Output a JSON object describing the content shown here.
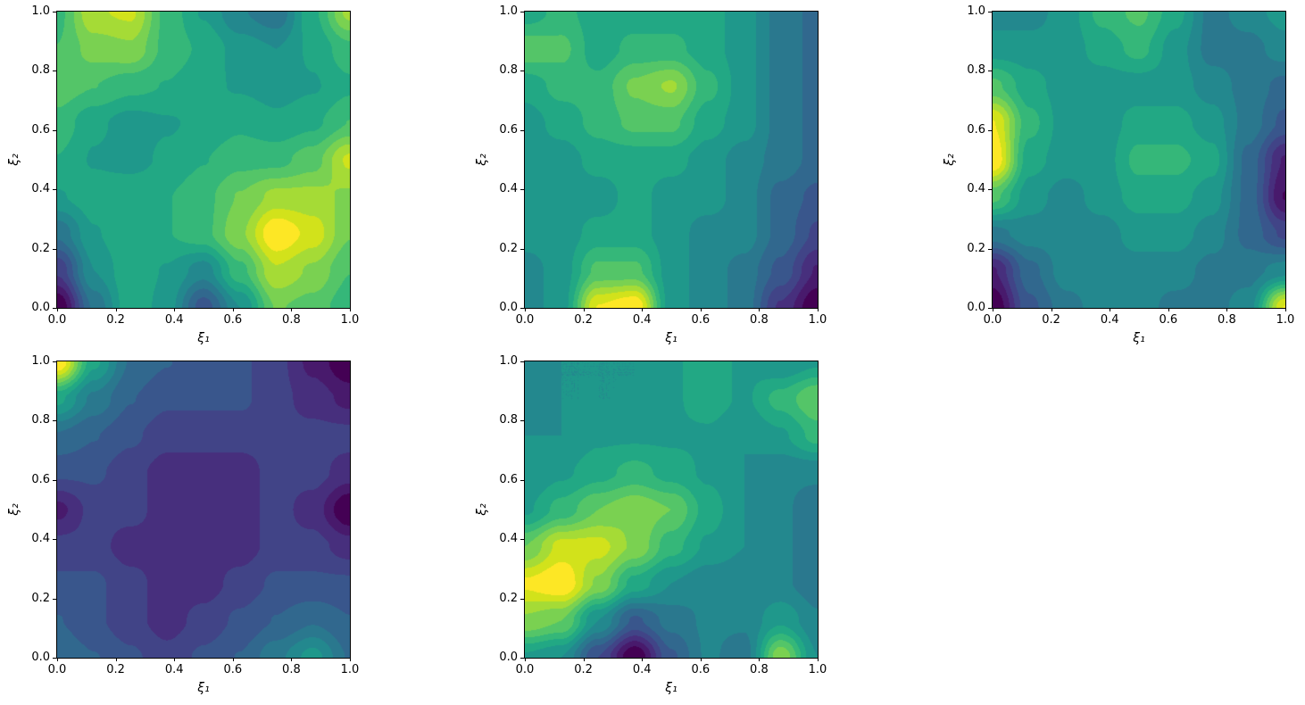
{
  "figure": {
    "background": "#ffffff",
    "layout": "2 rows x 3 columns, bottom-right cell empty",
    "num_subplots": 5
  },
  "chart_data": [
    {
      "type": "heatmap",
      "subtype": "filled-contour",
      "title": "",
      "xlabel": "ξ₁",
      "ylabel": "ξ₂",
      "xlim": [
        0.0,
        1.0
      ],
      "ylim": [
        0.0,
        1.0
      ],
      "xticks": [
        "0.0",
        "0.2",
        "0.4",
        "0.6",
        "0.8",
        "1.0"
      ],
      "yticks": [
        "0.0",
        "0.2",
        "0.4",
        "0.6",
        "0.8",
        "1.0"
      ],
      "colormap": "viridis",
      "levels": 16,
      "grid_x": [
        0,
        0.125,
        0.25,
        0.375,
        0.5,
        0.625,
        0.75,
        0.875,
        1.0
      ],
      "grid_y_top_to_bottom": [
        1.0,
        0.875,
        0.75,
        0.625,
        0.5,
        0.375,
        0.25,
        0.125,
        0.0
      ],
      "values": [
        [
          0.7,
          0.88,
          0.9,
          0.7,
          0.6,
          0.5,
          0.45,
          0.65,
          0.85
        ],
        [
          0.72,
          0.8,
          0.82,
          0.7,
          0.65,
          0.58,
          0.55,
          0.62,
          0.7
        ],
        [
          0.75,
          0.72,
          0.68,
          0.66,
          0.62,
          0.6,
          0.58,
          0.6,
          0.65
        ],
        [
          0.7,
          0.62,
          0.58,
          0.6,
          0.62,
          0.65,
          0.62,
          0.65,
          0.72
        ],
        [
          0.66,
          0.6,
          0.58,
          0.62,
          0.66,
          0.7,
          0.7,
          0.75,
          0.9
        ],
        [
          0.6,
          0.64,
          0.66,
          0.66,
          0.7,
          0.78,
          0.85,
          0.85,
          0.82
        ],
        [
          0.45,
          0.6,
          0.66,
          0.66,
          0.7,
          0.82,
          1.0,
          0.92,
          0.78
        ],
        [
          0.28,
          0.55,
          0.65,
          0.6,
          0.52,
          0.7,
          0.88,
          0.82,
          0.72
        ],
        [
          0.1,
          0.45,
          0.65,
          0.58,
          0.35,
          0.55,
          0.78,
          0.75,
          0.68
        ]
      ]
    },
    {
      "type": "heatmap",
      "subtype": "filled-contour",
      "title": "",
      "xlabel": "ξ₁",
      "ylabel": "ξ₂",
      "xlim": [
        0.0,
        1.0
      ],
      "ylim": [
        0.0,
        1.0
      ],
      "xticks": [
        "0.0",
        "0.2",
        "0.4",
        "0.6",
        "0.8",
        "1.0"
      ],
      "yticks": [
        "0.0",
        "0.2",
        "0.4",
        "0.6",
        "0.8",
        "1.0"
      ],
      "colormap": "viridis",
      "levels": 16,
      "grid_x": [
        0,
        0.125,
        0.25,
        0.375,
        0.5,
        0.625,
        0.75,
        0.875,
        1.0
      ],
      "grid_y_top_to_bottom": [
        1.0,
        0.875,
        0.75,
        0.625,
        0.5,
        0.375,
        0.25,
        0.125,
        0.0
      ],
      "values": [
        [
          0.5,
          0.55,
          0.5,
          0.5,
          0.5,
          0.5,
          0.45,
          0.35,
          0.3
        ],
        [
          0.62,
          0.6,
          0.5,
          0.55,
          0.55,
          0.5,
          0.45,
          0.35,
          0.3
        ],
        [
          0.5,
          0.55,
          0.55,
          0.65,
          0.7,
          0.55,
          0.45,
          0.35,
          0.3
        ],
        [
          0.45,
          0.5,
          0.55,
          0.6,
          0.6,
          0.5,
          0.45,
          0.35,
          0.3
        ],
        [
          0.45,
          0.45,
          0.5,
          0.5,
          0.5,
          0.45,
          0.4,
          0.35,
          0.3
        ],
        [
          0.45,
          0.45,
          0.45,
          0.5,
          0.45,
          0.45,
          0.4,
          0.3,
          0.25
        ],
        [
          0.45,
          0.45,
          0.5,
          0.5,
          0.45,
          0.4,
          0.4,
          0.3,
          0.2
        ],
        [
          0.4,
          0.45,
          0.6,
          0.6,
          0.45,
          0.4,
          0.35,
          0.25,
          0.1
        ],
        [
          0.4,
          0.45,
          0.8,
          0.85,
          0.45,
          0.4,
          0.35,
          0.15,
          0.0
        ]
      ]
    },
    {
      "type": "heatmap",
      "subtype": "filled-contour",
      "title": "",
      "xlabel": "ξ₁",
      "ylabel": "ξ₂",
      "xlim": [
        0.0,
        1.0
      ],
      "ylim": [
        0.0,
        1.0
      ],
      "xticks": [
        "0.0",
        "0.2",
        "0.4",
        "0.6",
        "0.8",
        "1.0"
      ],
      "yticks": [
        "0.0",
        "0.2",
        "0.4",
        "0.6",
        "0.8",
        "1.0"
      ],
      "colormap": "viridis",
      "levels": 16,
      "grid_x": [
        0,
        0.125,
        0.25,
        0.375,
        0.5,
        0.625,
        0.75,
        0.875,
        1.0
      ],
      "grid_y_top_to_bottom": [
        1.0,
        0.875,
        0.75,
        0.625,
        0.5,
        0.375,
        0.25,
        0.125,
        0.0
      ],
      "values": [
        [
          0.4,
          0.4,
          0.45,
          0.55,
          0.6,
          0.5,
          0.35,
          0.4,
          0.45
        ],
        [
          0.45,
          0.45,
          0.45,
          0.5,
          0.55,
          0.45,
          0.35,
          0.35,
          0.4
        ],
        [
          0.6,
          0.5,
          0.45,
          0.45,
          0.45,
          0.45,
          0.4,
          0.35,
          0.3
        ],
        [
          0.8,
          0.55,
          0.45,
          0.45,
          0.5,
          0.5,
          0.45,
          0.35,
          0.25
        ],
        [
          0.85,
          0.5,
          0.45,
          0.45,
          0.55,
          0.55,
          0.5,
          0.3,
          0.1
        ],
        [
          0.6,
          0.45,
          0.4,
          0.45,
          0.5,
          0.5,
          0.45,
          0.3,
          0.05
        ],
        [
          0.35,
          0.4,
          0.4,
          0.4,
          0.45,
          0.45,
          0.4,
          0.3,
          0.2
        ],
        [
          0.1,
          0.3,
          0.4,
          0.4,
          0.4,
          0.4,
          0.35,
          0.35,
          0.4
        ],
        [
          0.0,
          0.25,
          0.35,
          0.4,
          0.4,
          0.35,
          0.35,
          0.4,
          0.8
        ]
      ]
    },
    {
      "type": "heatmap",
      "subtype": "filled-contour",
      "title": "",
      "xlabel": "ξ₁",
      "ylabel": "ξ₂",
      "xlim": [
        0.0,
        1.0
      ],
      "ylim": [
        0.0,
        1.0
      ],
      "xticks": [
        "0.0",
        "0.2",
        "0.4",
        "0.6",
        "0.8",
        "1.0"
      ],
      "yticks": [
        "0.0",
        "0.2",
        "0.4",
        "0.6",
        "0.8",
        "1.0"
      ],
      "colormap": "viridis",
      "levels": 16,
      "grid_x": [
        0,
        0.125,
        0.25,
        0.375,
        0.5,
        0.625,
        0.75,
        0.875,
        1.0
      ],
      "grid_y_top_to_bottom": [
        1.0,
        0.875,
        0.75,
        0.625,
        0.5,
        0.375,
        0.25,
        0.125,
        0.0
      ],
      "values": [
        [
          1.0,
          0.6,
          0.4,
          0.35,
          0.3,
          0.3,
          0.25,
          0.15,
          0.05
        ],
        [
          0.6,
          0.45,
          0.35,
          0.3,
          0.3,
          0.3,
          0.25,
          0.2,
          0.15
        ],
        [
          0.4,
          0.35,
          0.3,
          0.25,
          0.25,
          0.25,
          0.25,
          0.25,
          0.25
        ],
        [
          0.3,
          0.3,
          0.25,
          0.2,
          0.2,
          0.2,
          0.25,
          0.25,
          0.2
        ],
        [
          0.15,
          0.25,
          0.25,
          0.2,
          0.2,
          0.2,
          0.25,
          0.2,
          0.05
        ],
        [
          0.25,
          0.25,
          0.2,
          0.2,
          0.2,
          0.2,
          0.25,
          0.25,
          0.2
        ],
        [
          0.3,
          0.3,
          0.25,
          0.2,
          0.2,
          0.25,
          0.3,
          0.3,
          0.3
        ],
        [
          0.35,
          0.3,
          0.25,
          0.2,
          0.25,
          0.3,
          0.35,
          0.4,
          0.35
        ],
        [
          0.4,
          0.35,
          0.3,
          0.25,
          0.3,
          0.35,
          0.45,
          0.55,
          0.4
        ]
      ]
    },
    {
      "type": "heatmap",
      "subtype": "filled-contour",
      "title": "",
      "xlabel": "ξ₁",
      "ylabel": "ξ₂",
      "xlim": [
        0.0,
        1.0
      ],
      "ylim": [
        0.0,
        1.0
      ],
      "xticks": [
        "0.0",
        "0.2",
        "0.4",
        "0.6",
        "0.8",
        "1.0"
      ],
      "yticks": [
        "0.0",
        "0.2",
        "0.4",
        "0.6",
        "0.8",
        "1.0"
      ],
      "colormap": "viridis",
      "levels": 16,
      "grid_x": [
        0,
        0.125,
        0.25,
        0.375,
        0.5,
        0.625,
        0.75,
        0.875,
        1.0
      ],
      "grid_y_top_to_bottom": [
        1.0,
        0.875,
        0.75,
        0.625,
        0.5,
        0.375,
        0.25,
        0.125,
        0.0
      ],
      "values": [
        [
          0.45,
          0.5,
          0.5,
          0.5,
          0.55,
          0.6,
          0.55,
          0.5,
          0.55
        ],
        [
          0.45,
          0.5,
          0.5,
          0.5,
          0.55,
          0.6,
          0.55,
          0.65,
          0.75
        ],
        [
          0.5,
          0.5,
          0.55,
          0.55,
          0.55,
          0.55,
          0.5,
          0.55,
          0.65
        ],
        [
          0.5,
          0.55,
          0.6,
          0.65,
          0.6,
          0.55,
          0.5,
          0.45,
          0.45
        ],
        [
          0.55,
          0.65,
          0.75,
          0.8,
          0.75,
          0.6,
          0.5,
          0.45,
          0.4
        ],
        [
          0.75,
          0.9,
          0.9,
          0.8,
          0.65,
          0.55,
          0.5,
          0.45,
          0.4
        ],
        [
          0.95,
          1.0,
          0.8,
          0.6,
          0.5,
          0.45,
          0.45,
          0.45,
          0.4
        ],
        [
          0.8,
          0.75,
          0.5,
          0.3,
          0.4,
          0.45,
          0.45,
          0.55,
          0.45
        ],
        [
          0.55,
          0.5,
          0.25,
          0.0,
          0.3,
          0.45,
          0.4,
          0.8,
          0.5
        ]
      ]
    }
  ]
}
